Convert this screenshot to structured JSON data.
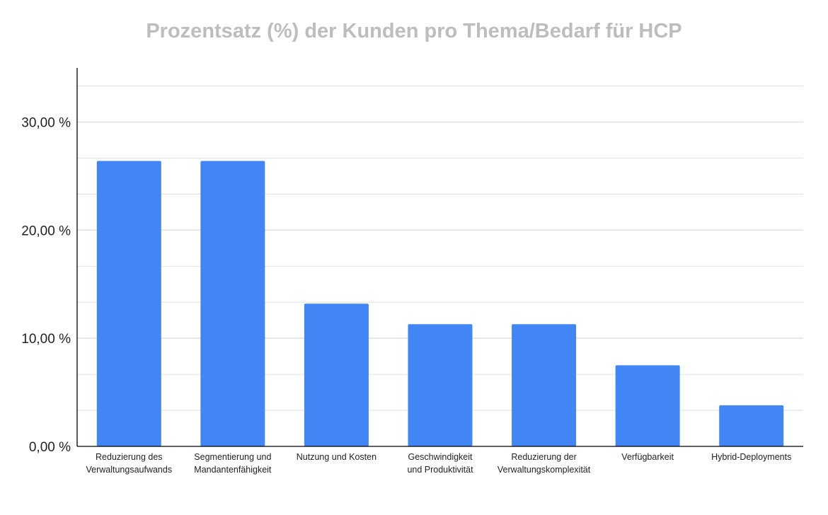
{
  "chart_data": {
    "type": "bar",
    "title": "Prozentsatz (%) der Kunden pro Thema/Bedarf für HCP",
    "xlabel": "",
    "ylabel": "",
    "ylim": [
      0,
      35
    ],
    "grid": true,
    "legend": "none",
    "categories": [
      [
        "Reduzierung des",
        "Verwaltungsaufwands"
      ],
      [
        "Segmentierung und",
        "Mandantenfähigkeit"
      ],
      [
        "Nutzung und Kosten"
      ],
      [
        "Geschwindigkeit",
        "und Produktivität"
      ],
      [
        "Reduzierung der",
        "Verwaltungskomplexität"
      ],
      [
        "Verfügbarkeit"
      ],
      [
        "Hybrid-Deployments"
      ]
    ],
    "values": [
      26.4,
      26.4,
      13.2,
      11.3,
      11.3,
      7.5,
      3.8
    ],
    "yticks": [
      0,
      10,
      20,
      30
    ],
    "ytick_labels": [
      "0,00 %",
      "10,00 %",
      "20,00 %",
      "30,00 %"
    ],
    "colors": {
      "bar": "#4285f4",
      "grid": "#d9d9d9",
      "axis": "#000000",
      "title": "#bdbdbd"
    }
  }
}
